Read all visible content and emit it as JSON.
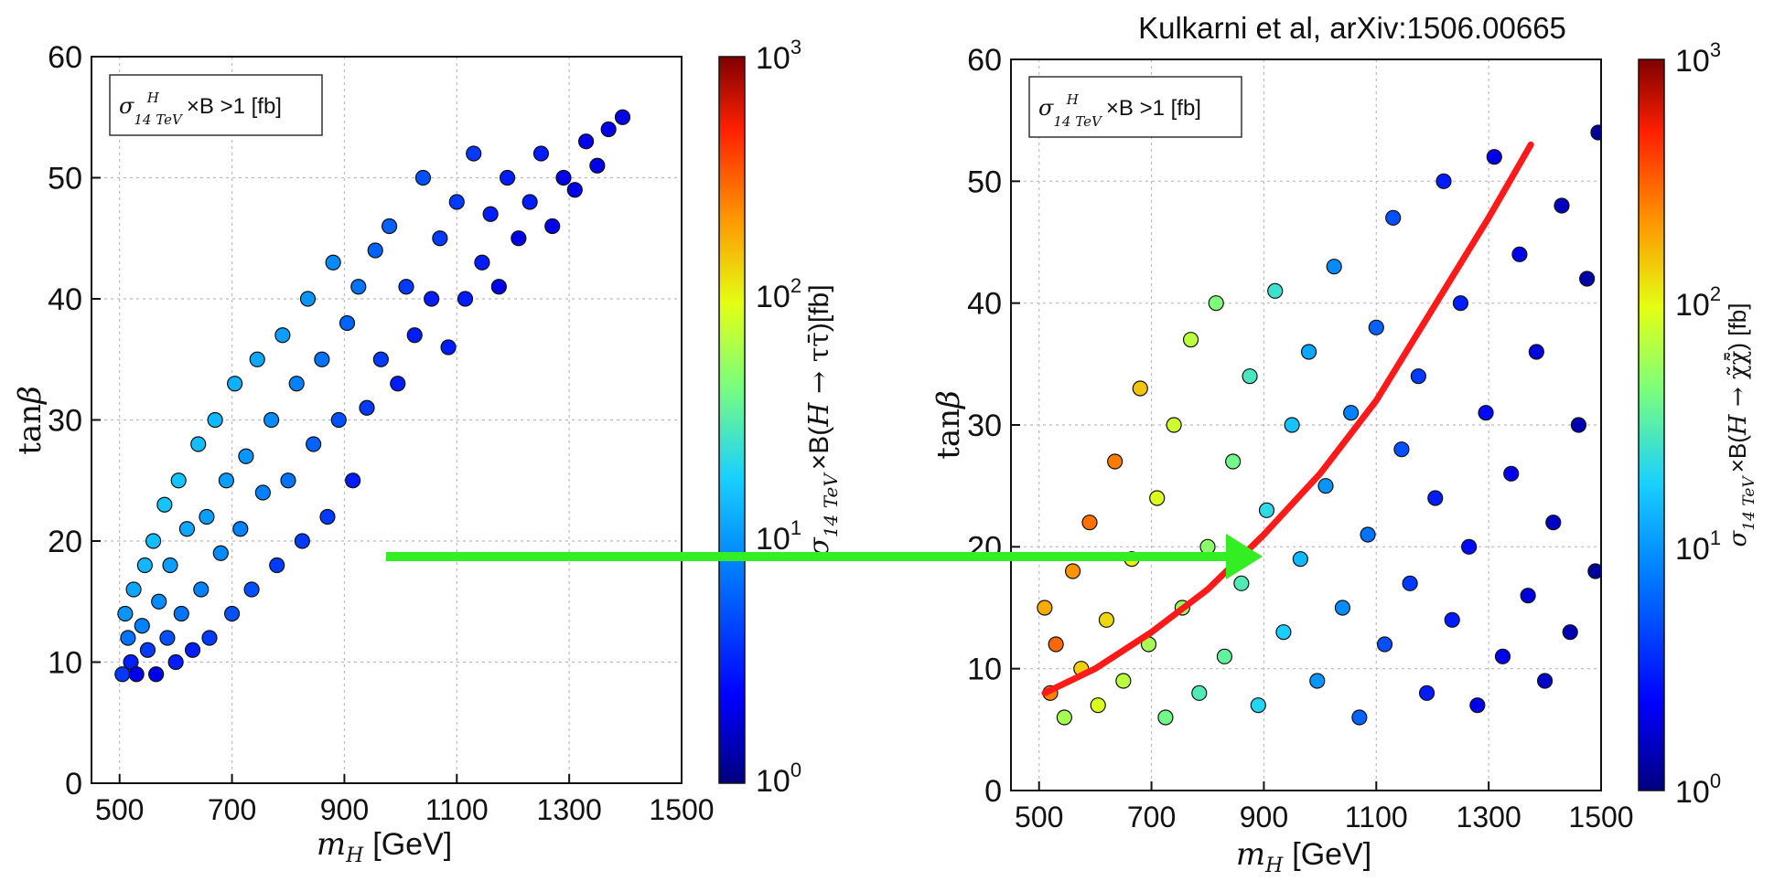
{
  "citation": "Kulkarni et al, arXiv:1506.00665",
  "colors": {
    "arrow_green": "#33ee22",
    "curve_red": "#ff1a1a",
    "point_edge": "#111111",
    "colorscale": [
      "#00007f",
      "#0000ff",
      "#0080ff",
      "#19d0ff",
      "#7dff7a",
      "#e4ff13",
      "#ff9400",
      "#ff2000",
      "#7f0000"
    ]
  },
  "chart_data": [
    {
      "type": "scatter",
      "title": "",
      "xlabel": "m_H [GeV]",
      "ylabel": "tanβ",
      "xlim": [
        450,
        1500
      ],
      "ylim": [
        0,
        60
      ],
      "xticks": [
        "500",
        "700",
        "900",
        "1100",
        "1300",
        "1500"
      ],
      "yticks": [
        "0",
        "10",
        "20",
        "30",
        "40",
        "50",
        "60"
      ],
      "grid": true,
      "annotation": "σ^H_{14 TeV} ×B >1 [fb]",
      "colorbar": {
        "label": "σ^H_{14 TeV} ×B(H → ττ̄) [fb]",
        "scale": "log",
        "range": [
          1,
          1000
        ],
        "ticks": [
          "10^0",
          "10^1",
          "10^2",
          "10^3"
        ]
      },
      "points": [
        [
          505,
          9,
          4
        ],
        [
          510,
          14,
          10
        ],
        [
          515,
          12,
          7
        ],
        [
          520,
          10,
          3
        ],
        [
          525,
          16,
          12
        ],
        [
          530,
          9,
          2
        ],
        [
          540,
          13,
          8
        ],
        [
          545,
          18,
          14
        ],
        [
          550,
          11,
          4
        ],
        [
          560,
          20,
          15
        ],
        [
          565,
          9,
          2
        ],
        [
          570,
          15,
          9
        ],
        [
          580,
          23,
          16
        ],
        [
          585,
          12,
          5
        ],
        [
          590,
          18,
          11
        ],
        [
          600,
          10,
          3
        ],
        [
          605,
          25,
          16
        ],
        [
          610,
          14,
          7
        ],
        [
          620,
          21,
          12
        ],
        [
          630,
          11,
          3
        ],
        [
          640,
          28,
          15
        ],
        [
          645,
          16,
          8
        ],
        [
          655,
          22,
          11
        ],
        [
          660,
          12,
          4
        ],
        [
          670,
          30,
          14
        ],
        [
          680,
          19,
          9
        ],
        [
          690,
          25,
          11
        ],
        [
          700,
          14,
          5
        ],
        [
          705,
          33,
          13
        ],
        [
          715,
          21,
          8
        ],
        [
          725,
          27,
          10
        ],
        [
          735,
          16,
          5
        ],
        [
          745,
          35,
          12
        ],
        [
          755,
          24,
          8
        ],
        [
          770,
          30,
          9
        ],
        [
          780,
          18,
          4
        ],
        [
          790,
          37,
          11
        ],
        [
          800,
          25,
          7
        ],
        [
          815,
          33,
          8
        ],
        [
          825,
          20,
          4
        ],
        [
          835,
          40,
          10
        ],
        [
          845,
          28,
          6
        ],
        [
          860,
          35,
          7
        ],
        [
          870,
          22,
          4
        ],
        [
          880,
          43,
          9
        ],
        [
          890,
          30,
          5
        ],
        [
          905,
          38,
          6
        ],
        [
          915,
          25,
          3
        ],
        [
          925,
          41,
          7
        ],
        [
          940,
          31,
          4
        ],
        [
          955,
          44,
          6
        ],
        [
          965,
          35,
          4
        ],
        [
          980,
          46,
          6
        ],
        [
          995,
          33,
          3
        ],
        [
          1010,
          41,
          4
        ],
        [
          1025,
          37,
          3
        ],
        [
          1040,
          50,
          5
        ],
        [
          1055,
          40,
          3
        ],
        [
          1070,
          45,
          4
        ],
        [
          1085,
          36,
          3
        ],
        [
          1100,
          48,
          4
        ],
        [
          1115,
          40,
          3
        ],
        [
          1130,
          52,
          4
        ],
        [
          1145,
          43,
          3
        ],
        [
          1160,
          47,
          3
        ],
        [
          1175,
          41,
          2
        ],
        [
          1190,
          50,
          3
        ],
        [
          1210,
          45,
          2
        ],
        [
          1230,
          48,
          3
        ],
        [
          1250,
          52,
          3
        ],
        [
          1270,
          46,
          2
        ],
        [
          1290,
          50,
          2
        ],
        [
          1310,
          49,
          2
        ],
        [
          1330,
          53,
          2
        ],
        [
          1350,
          51,
          2
        ],
        [
          1370,
          54,
          2
        ],
        [
          1395,
          55,
          2
        ]
      ]
    },
    {
      "type": "scatter",
      "title": "",
      "xlabel": "m_H [GeV]",
      "ylabel": "tanβ",
      "xlim": [
        450,
        1500
      ],
      "ylim": [
        0,
        60
      ],
      "xticks": [
        "500",
        "700",
        "900",
        "1100",
        "1300",
        "1500"
      ],
      "yticks": [
        "0",
        "10",
        "20",
        "30",
        "40",
        "50",
        "60"
      ],
      "grid": true,
      "annotation": "σ^H_{14 TeV} ×B >1 [fb]",
      "colorbar": {
        "label": "σ^H_{14 TeV} ×B(H → χ̃χ̃̄) [fb]",
        "scale": "log",
        "range": [
          1,
          1000
        ],
        "ticks": [
          "10^0",
          "10^1",
          "10^2",
          "10^3"
        ]
      },
      "curve": [
        [
          510,
          8
        ],
        [
          600,
          10
        ],
        [
          700,
          13
        ],
        [
          800,
          16.5
        ],
        [
          900,
          21
        ],
        [
          1000,
          26
        ],
        [
          1100,
          32
        ],
        [
          1200,
          39.5
        ],
        [
          1300,
          47
        ],
        [
          1375,
          53
        ]
      ],
      "points": [
        [
          510,
          15,
          180
        ],
        [
          520,
          8,
          250
        ],
        [
          530,
          12,
          300
        ],
        [
          545,
          6,
          60
        ],
        [
          560,
          18,
          220
        ],
        [
          575,
          10,
          140
        ],
        [
          590,
          22,
          280
        ],
        [
          605,
          7,
          90
        ],
        [
          620,
          14,
          130
        ],
        [
          635,
          27,
          260
        ],
        [
          650,
          9,
          70
        ],
        [
          665,
          19,
          110
        ],
        [
          680,
          33,
          150
        ],
        [
          695,
          12,
          60
        ],
        [
          710,
          24,
          90
        ],
        [
          725,
          6,
          40
        ],
        [
          740,
          30,
          80
        ],
        [
          755,
          15,
          55
        ],
        [
          770,
          37,
          70
        ],
        [
          785,
          8,
          30
        ],
        [
          800,
          20,
          50
        ],
        [
          815,
          40,
          45
        ],
        [
          830,
          11,
          35
        ],
        [
          845,
          27,
          40
        ],
        [
          860,
          17,
          30
        ],
        [
          875,
          34,
          28
        ],
        [
          890,
          7,
          20
        ],
        [
          905,
          23,
          22
        ],
        [
          920,
          41,
          25
        ],
        [
          935,
          13,
          18
        ],
        [
          950,
          30,
          16
        ],
        [
          965,
          19,
          14
        ],
        [
          980,
          36,
          12
        ],
        [
          995,
          9,
          10
        ],
        [
          1010,
          25,
          10
        ],
        [
          1025,
          43,
          9
        ],
        [
          1040,
          15,
          9
        ],
        [
          1055,
          31,
          8
        ],
        [
          1070,
          6,
          6
        ],
        [
          1085,
          21,
          7
        ],
        [
          1100,
          38,
          6
        ],
        [
          1115,
          12,
          5
        ],
        [
          1130,
          47,
          5
        ],
        [
          1145,
          28,
          5
        ],
        [
          1160,
          17,
          4
        ],
        [
          1175,
          34,
          4
        ],
        [
          1190,
          8,
          3
        ],
        [
          1205,
          24,
          3
        ],
        [
          1220,
          50,
          3
        ],
        [
          1235,
          14,
          3
        ],
        [
          1250,
          40,
          3
        ],
        [
          1265,
          20,
          2.5
        ],
        [
          1280,
          7,
          2
        ],
        [
          1295,
          31,
          2.5
        ],
        [
          1310,
          52,
          2
        ],
        [
          1325,
          11,
          2
        ],
        [
          1340,
          26,
          2
        ],
        [
          1355,
          44,
          2
        ],
        [
          1370,
          16,
          1.8
        ],
        [
          1385,
          36,
          1.8
        ],
        [
          1400,
          9,
          1.6
        ],
        [
          1415,
          22,
          1.6
        ],
        [
          1430,
          48,
          1.5
        ],
        [
          1445,
          13,
          1.4
        ],
        [
          1460,
          30,
          1.4
        ],
        [
          1475,
          42,
          1.3
        ],
        [
          1490,
          18,
          1.2
        ],
        [
          1495,
          54,
          1.2
        ]
      ]
    }
  ]
}
